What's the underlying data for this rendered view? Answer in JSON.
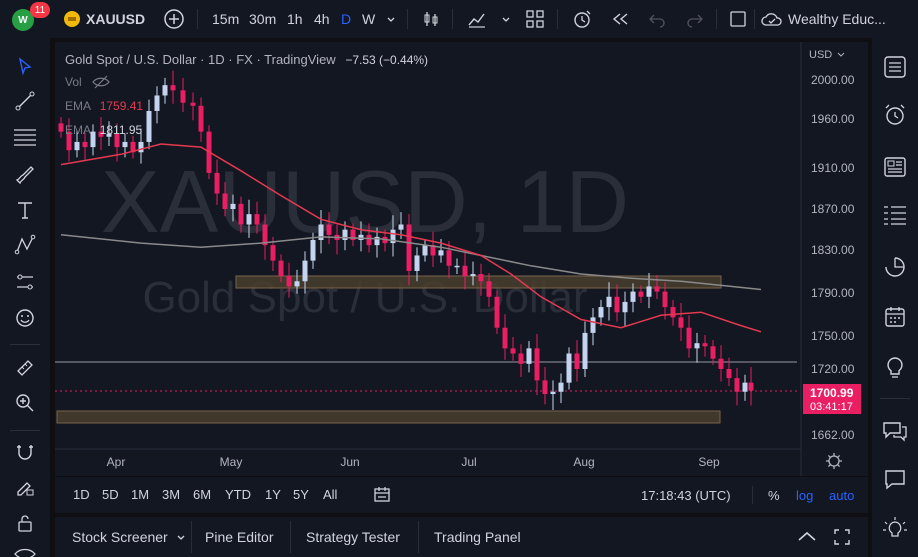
{
  "toolbar": {
    "avatar_initials": "W",
    "notifications": "11",
    "symbol": "XAUUSD",
    "intervals": [
      "15m",
      "30m",
      "1h",
      "4h",
      "D",
      "W"
    ],
    "active_interval": "D",
    "account_name": "Wealthy Educ..."
  },
  "legend": {
    "title": "Gold Spot / U.S. Dollar · 1D · FX · TradingView",
    "change": "−7.53 (−0.44%)",
    "vol_label": "Vol",
    "ema1_label": "EMA",
    "ema1_value": "1759.41",
    "ema2_label": "EMA",
    "ema2_value": "1811.95"
  },
  "watermark": {
    "line1": "XAUUSD, 1D",
    "line2": "Gold Spot / U.S. Dollar"
  },
  "price_axis": {
    "currency": "USD",
    "ticks": [
      "2000.00",
      "1960.00",
      "1910.00",
      "1870.00",
      "1830.00",
      "1790.00",
      "1750.00",
      "1720.00",
      "1662.00"
    ],
    "last_price": "1700.99",
    "countdown": "03:41:17"
  },
  "time_axis": {
    "labels": [
      "Apr",
      "May",
      "Jun",
      "Jul",
      "Aug",
      "Sep"
    ]
  },
  "range_bar": {
    "ranges": [
      "1D",
      "5D",
      "1M",
      "3M",
      "6M",
      "YTD",
      "1Y",
      "5Y",
      "All"
    ],
    "clock": "17:18:43 (UTC)",
    "percent": "%",
    "log": "log",
    "auto": "auto"
  },
  "bottom_tabs": [
    "Stock Screener",
    "Pine Editor",
    "Strategy Tester",
    "Trading Panel"
  ],
  "colors": {
    "up": "#c4d4f0",
    "down": "#e91e63",
    "ema_fast": "#e53950",
    "ema_slow": "#8a8a8a",
    "zone": "#5a4a35",
    "price_label": "#e91e63",
    "accent": "#2962ff"
  }
}
